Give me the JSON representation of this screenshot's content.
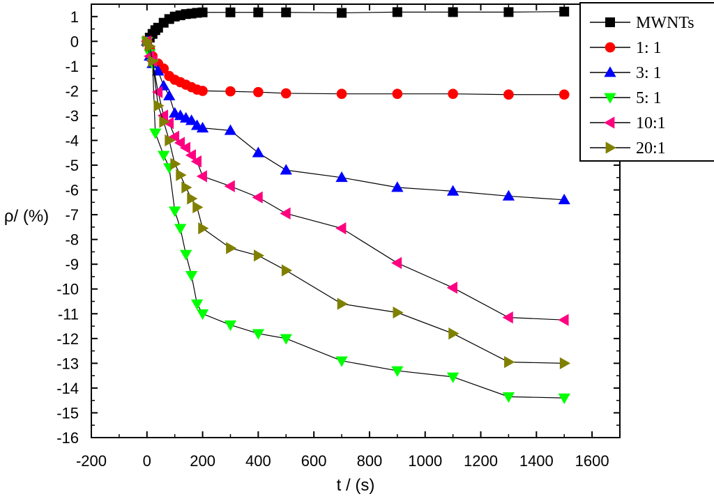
{
  "chart_data": {
    "type": "line",
    "title": "",
    "xlabel": "t / (s)",
    "ylabel": "ρ/ (%)",
    "xlim": [
      -200,
      1700
    ],
    "ylim": [
      -16,
      1.5
    ],
    "xticks": [
      -200,
      0,
      200,
      400,
      600,
      800,
      1000,
      1200,
      1400,
      1600
    ],
    "yticks": [
      1,
      0,
      -1,
      -2,
      -3,
      -4,
      -5,
      -6,
      -7,
      -8,
      -9,
      -10,
      -11,
      -12,
      -13,
      -14,
      -15,
      -16
    ],
    "legend_position": "top-right",
    "grid": false,
    "series": [
      {
        "name": "MWNTs",
        "marker": "square",
        "color": "#000000",
        "x": [
          0,
          10,
          20,
          30,
          40,
          60,
          80,
          100,
          120,
          140,
          160,
          180,
          200,
          300,
          400,
          500,
          700,
          900,
          1100,
          1300,
          1500
        ],
        "y": [
          0,
          0.15,
          0.3,
          0.45,
          0.55,
          0.75,
          0.9,
          1.0,
          1.05,
          1.1,
          1.12,
          1.15,
          1.17,
          1.17,
          1.17,
          1.17,
          1.15,
          1.18,
          1.18,
          1.18,
          1.2
        ]
      },
      {
        "name": "1:  1",
        "marker": "circle",
        "color": "#ff0000",
        "x": [
          0,
          10,
          20,
          40,
          60,
          80,
          100,
          120,
          140,
          160,
          180,
          200,
          300,
          400,
          500,
          700,
          900,
          1100,
          1300,
          1500
        ],
        "y": [
          0,
          -0.3,
          -0.6,
          -0.9,
          -1.1,
          -1.4,
          -1.55,
          -1.65,
          -1.75,
          -1.85,
          -1.95,
          -2.0,
          -2.02,
          -2.05,
          -2.1,
          -2.12,
          -2.12,
          -2.12,
          -2.15,
          -2.15
        ]
      },
      {
        "name": "3:  1",
        "marker": "triangle-up",
        "color": "#0000ff",
        "x": [
          0,
          10,
          20,
          40,
          60,
          80,
          100,
          120,
          140,
          160,
          180,
          200,
          300,
          400,
          500,
          700,
          900,
          1100,
          1300,
          1500
        ],
        "y": [
          0,
          -0.6,
          -0.9,
          -1.2,
          -1.8,
          -2.2,
          -2.9,
          -3.0,
          -3.1,
          -3.2,
          -3.4,
          -3.5,
          -3.6,
          -4.5,
          -5.2,
          -5.5,
          -5.9,
          -6.05,
          -6.25,
          -6.4
        ]
      },
      {
        "name": "5:  1",
        "marker": "triangle-down",
        "color": "#00ff00",
        "x": [
          0,
          10,
          20,
          30,
          60,
          80,
          100,
          120,
          140,
          160,
          180,
          200,
          300,
          400,
          500,
          700,
          900,
          1100,
          1300,
          1500
        ],
        "y": [
          0,
          -0.5,
          -0.9,
          -3.7,
          -4.6,
          -5.1,
          -6.85,
          -7.55,
          -8.6,
          -9.45,
          -10.6,
          -11.0,
          -11.45,
          -11.8,
          -12.0,
          -12.9,
          -13.3,
          -13.55,
          -14.35,
          -14.4
        ]
      },
      {
        "name": "10:1",
        "marker": "triangle-left",
        "color": "#ff0080",
        "x": [
          0,
          10,
          20,
          40,
          60,
          80,
          100,
          120,
          140,
          160,
          180,
          200,
          300,
          400,
          500,
          700,
          900,
          1100,
          1300,
          1500
        ],
        "y": [
          0,
          -0.6,
          -0.8,
          -2.05,
          -3.0,
          -3.3,
          -3.85,
          -4.1,
          -4.3,
          -4.6,
          -4.85,
          -5.45,
          -5.85,
          -6.3,
          -6.95,
          -7.55,
          -8.95,
          -9.95,
          -11.15,
          -11.25
        ]
      },
      {
        "name": "20:1",
        "marker": "triangle-right",
        "color": "#808000",
        "x": [
          0,
          10,
          20,
          40,
          60,
          80,
          100,
          120,
          140,
          160,
          180,
          200,
          300,
          400,
          500,
          700,
          900,
          1100,
          1300,
          1500
        ],
        "y": [
          0,
          -0.2,
          -0.8,
          -2.6,
          -3.25,
          -4.0,
          -4.95,
          -5.4,
          -5.9,
          -6.35,
          -6.7,
          -7.55,
          -8.35,
          -8.65,
          -9.25,
          -10.6,
          -10.95,
          -11.8,
          -12.95,
          -13.0
        ]
      }
    ]
  }
}
